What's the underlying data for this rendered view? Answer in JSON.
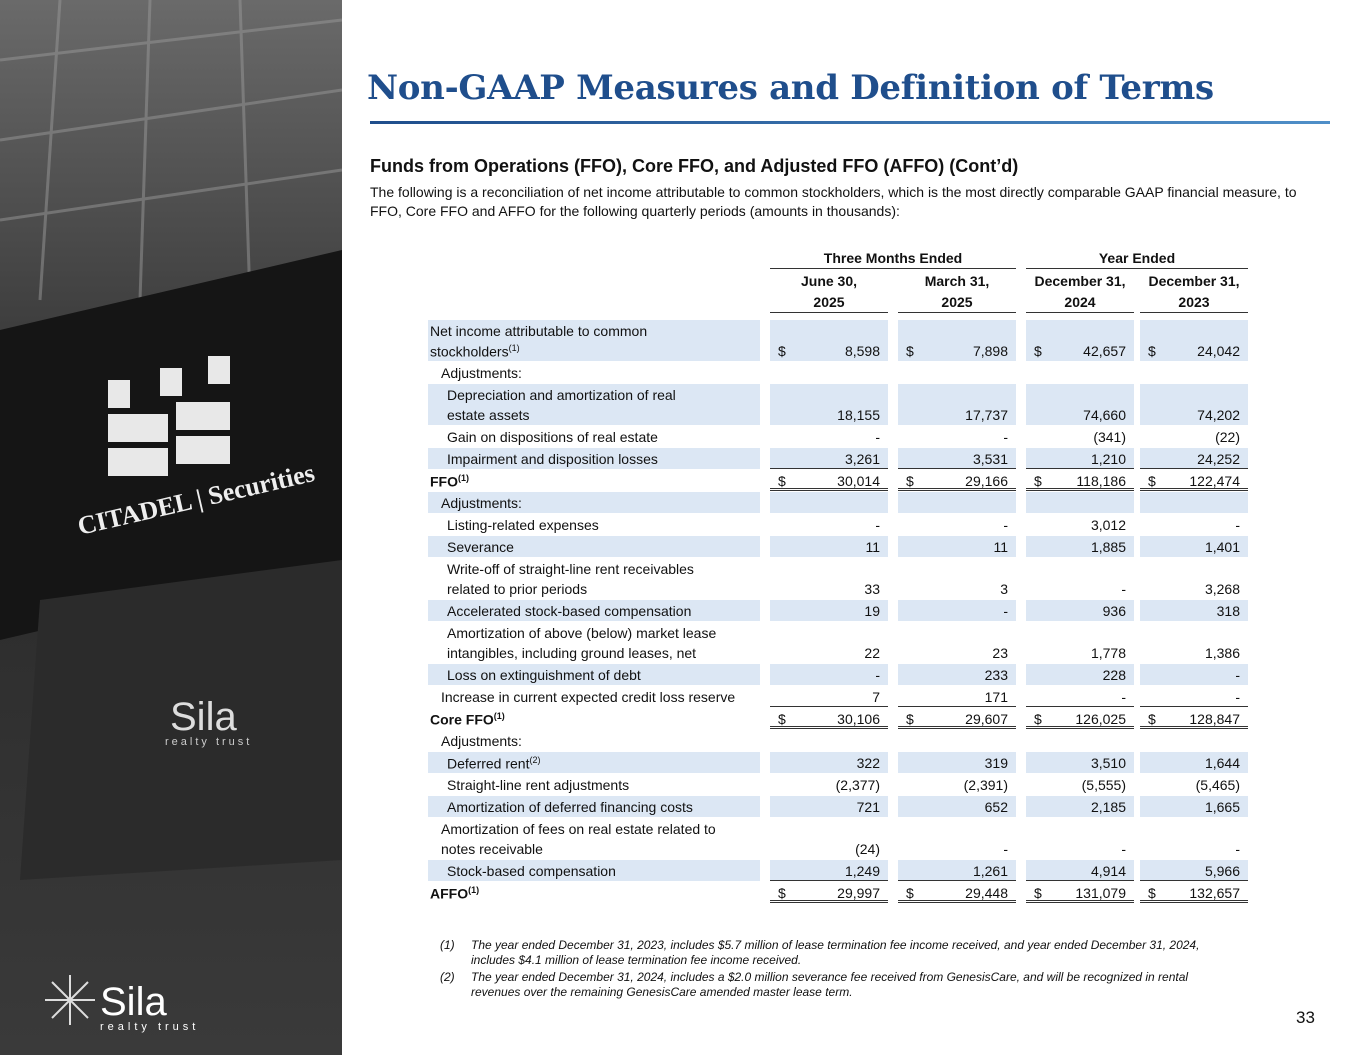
{
  "header": {
    "title": "Non-GAAP Measures and Definition of Terms"
  },
  "photo": {
    "signage": "CITADEL | Securities",
    "logo_name": "Sila",
    "logo_tagline": "realty trust"
  },
  "logo": {
    "name": "Sila",
    "tagline": "realty trust"
  },
  "section": {
    "heading": "Funds from Operations (FFO), Core FFO, and Adjusted FFO (AFFO) (Cont’d)",
    "intro": "The following is a reconciliation of net income attributable to common stockholders, which is the most directly comparable GAAP financial measure, to FFO, Core FFO and AFFO for the following quarterly periods (amounts in thousands):"
  },
  "table": {
    "groups": [
      "Three Months Ended",
      "Year Ended"
    ],
    "columns": [
      [
        "June 30,",
        "2025"
      ],
      [
        "March 31,",
        "2025"
      ],
      [
        "December 31,",
        "2024"
      ],
      [
        "December 31,",
        "2023"
      ]
    ],
    "rows": [
      {
        "label": [
          "Net income attributable to common",
          "stockholders"
        ],
        "sup": "(1)",
        "currency": "$",
        "values": [
          "8,598",
          "7,898",
          "42,657",
          "24,042"
        ],
        "shade": true,
        "indent": 0
      },
      {
        "label": [
          "Adjustments:"
        ],
        "values": [],
        "shade": false,
        "indent": 1
      },
      {
        "label": [
          "Depreciation and amortization of real",
          "estate assets"
        ],
        "values": [
          "18,155",
          "17,737",
          "74,660",
          "74,202"
        ],
        "shade": true,
        "indent": 2
      },
      {
        "label": [
          "Gain on dispositions of real estate"
        ],
        "values": [
          "-",
          "-",
          "(341)",
          "(22)"
        ],
        "shade": false,
        "indent": 2
      },
      {
        "label": [
          "Impairment and disposition losses"
        ],
        "values": [
          "3,261",
          "3,531",
          "1,210",
          "24,252"
        ],
        "shade": true,
        "indent": 2,
        "rule": "single"
      },
      {
        "label": [
          "FFO"
        ],
        "sup": "(1)",
        "currency": "$",
        "values": [
          "30,014",
          "29,166",
          "118,186",
          "122,474"
        ],
        "shade": false,
        "indent": 0,
        "bold": true,
        "rule": "double"
      },
      {
        "label": [
          "Adjustments:"
        ],
        "values": [],
        "shade": true,
        "indent": 1
      },
      {
        "label": [
          "Listing-related expenses"
        ],
        "values": [
          "-",
          "-",
          "3,012",
          "-"
        ],
        "shade": false,
        "indent": 2
      },
      {
        "label": [
          "Severance"
        ],
        "values": [
          "11",
          "11",
          "1,885",
          "1,401"
        ],
        "shade": true,
        "indent": 2
      },
      {
        "label": [
          "Write-off of straight-line rent receivables",
          "related to prior periods"
        ],
        "values": [
          "33",
          "3",
          "-",
          "3,268"
        ],
        "shade": false,
        "indent": 2
      },
      {
        "label": [
          "Accelerated stock-based compensation"
        ],
        "values": [
          "19",
          "-",
          "936",
          "318"
        ],
        "shade": true,
        "indent": 2
      },
      {
        "label": [
          "Amortization of above (below) market lease",
          "intangibles, including  ground leases, net"
        ],
        "values": [
          "22",
          "23",
          "1,778",
          "1,386"
        ],
        "shade": false,
        "indent": 2
      },
      {
        "label": [
          "Loss on extinguishment of debt"
        ],
        "values": [
          "-",
          "233",
          "228",
          "-"
        ],
        "shade": true,
        "indent": 2
      },
      {
        "label": [
          "Increase in current expected credit loss reserve"
        ],
        "values": [
          "7",
          "171",
          "-",
          "-"
        ],
        "shade": false,
        "indent": 1,
        "rule": "single"
      },
      {
        "label": [
          "Core FFO"
        ],
        "sup": "(1)",
        "currency": "$",
        "values": [
          "30,106",
          "29,607",
          "126,025",
          "128,847"
        ],
        "shade": false,
        "indent": 0,
        "bold": true,
        "rule": "double"
      },
      {
        "label": [
          "Adjustments:"
        ],
        "values": [],
        "shade": false,
        "indent": 1
      },
      {
        "label": [
          "Deferred rent"
        ],
        "sup": "(2)",
        "values": [
          "322",
          "319",
          "3,510",
          "1,644"
        ],
        "shade": true,
        "indent": 2
      },
      {
        "label": [
          "Straight-line rent adjustments"
        ],
        "values": [
          "(2,377)",
          "(2,391)",
          "(5,555)",
          "(5,465)"
        ],
        "shade": false,
        "indent": 2
      },
      {
        "label": [
          "Amortization of deferred financing costs"
        ],
        "values": [
          "721",
          "652",
          "2,185",
          "1,665"
        ],
        "shade": true,
        "indent": 2
      },
      {
        "label": [
          "Amortization of fees on real estate related to",
          "notes receivable"
        ],
        "values": [
          "(24)",
          "-",
          "-",
          "-"
        ],
        "shade": false,
        "indent": 1
      },
      {
        "label": [
          "Stock-based compensation"
        ],
        "values": [
          "1,249",
          "1,261",
          "4,914",
          "5,966"
        ],
        "shade": true,
        "indent": 2,
        "rule": "single"
      },
      {
        "label": [
          "AFFO"
        ],
        "sup": "(1)",
        "currency": "$",
        "values": [
          "29,997",
          "29,448",
          "131,079",
          "132,657"
        ],
        "shade": false,
        "indent": 0,
        "bold": true,
        "rule": "double"
      }
    ]
  },
  "footnotes": [
    {
      "mark": "(1)",
      "text": "The year ended December 31, 2023, includes $5.7 million of lease termination fee income received, and year ended December 31, 2024, includes $4.1 million of lease termination fee income received."
    },
    {
      "mark": "(2)",
      "text": "The year ended December 31, 2024, includes a $2.0 million severance fee received from GenesisCare, and will be recognized in rental revenues over the remaining GenesisCare amended master lease term."
    }
  ],
  "page_number": "33"
}
